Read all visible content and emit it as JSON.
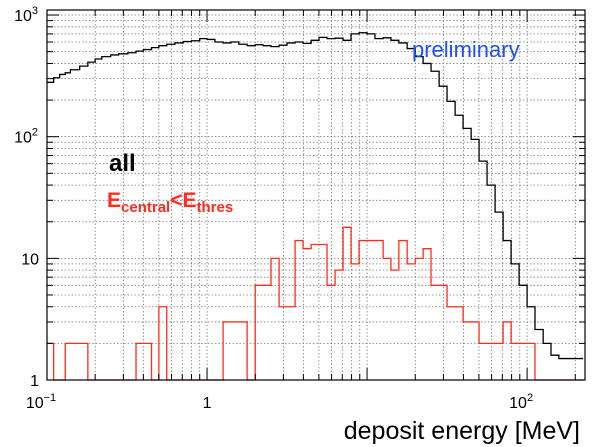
{
  "chart_data": {
    "type": "histogram",
    "title": "",
    "xlabel": "deposit energy [MeV]",
    "ylabel": "",
    "x_scale": "log",
    "y_scale": "log",
    "xlim": [
      0.1,
      230
    ],
    "ylim": [
      1,
      1100
    ],
    "grid": true,
    "x_ticks": [
      {
        "value": 0.1,
        "base": "10",
        "exp": "−1"
      },
      {
        "value": 1,
        "base": "1",
        "exp": ""
      },
      {
        "value": 100,
        "base": "10",
        "exp": "2"
      }
    ],
    "y_ticks": [
      {
        "value": 1,
        "base": "1",
        "exp": ""
      },
      {
        "value": 10,
        "base": "10",
        "exp": ""
      },
      {
        "value": 100,
        "base": "10",
        "exp": "2"
      },
      {
        "value": 1000,
        "base": "10",
        "exp": "3"
      }
    ],
    "annotations": {
      "preliminary": {
        "text": "preliminary",
        "color": "#1f4fff"
      },
      "all": {
        "text": "all",
        "color": "#000000"
      },
      "selection": {
        "main": "E",
        "sub1": "central",
        "mid": "<E",
        "sub2": "thres",
        "color": "#ff2b1c"
      }
    },
    "series": [
      {
        "name": "all",
        "color": "#000000",
        "bin_edges": [
          0.1,
          0.11,
          0.12,
          0.13,
          0.14,
          0.16,
          0.18,
          0.2,
          0.22,
          0.25,
          0.28,
          0.32,
          0.36,
          0.4,
          0.45,
          0.5,
          0.56,
          0.63,
          0.71,
          0.8,
          0.9,
          1.0,
          1.12,
          1.26,
          1.41,
          1.58,
          1.78,
          2.0,
          2.24,
          2.51,
          2.82,
          3.16,
          3.55,
          3.98,
          4.47,
          5.01,
          5.62,
          6.31,
          7.08,
          7.94,
          8.91,
          10.0,
          11.2,
          12.6,
          14.1,
          15.8,
          17.8,
          20.0,
          22.4,
          25.1,
          28.2,
          31.6,
          35.5,
          39.8,
          44.7,
          50.1,
          56.2,
          63.1,
          70.8,
          79.4,
          89.1,
          100,
          112,
          126,
          141,
          158,
          178,
          200,
          224
        ],
        "values": [
          280,
          305,
          325,
          335,
          355,
          380,
          410,
          435,
          455,
          470,
          480,
          490,
          505,
          520,
          540,
          560,
          575,
          590,
          605,
          615,
          640,
          630,
          600,
          590,
          600,
          575,
          560,
          570,
          560,
          550,
          565,
          590,
          600,
          585,
          620,
          655,
          640,
          645,
          620,
          700,
          715,
          700,
          640,
          650,
          620,
          590,
          530,
          455,
          400,
          345,
          260,
          195,
          150,
          117,
          95,
          63,
          40,
          24,
          14,
          9,
          6,
          4,
          2.6,
          2.0,
          1.6,
          1.5,
          1.5,
          1.5
        ]
      },
      {
        "name": "E_central<E_thres",
        "color": "#ff2b1c",
        "bin_edges": [
          0.1,
          0.11,
          0.12,
          0.13,
          0.14,
          0.16,
          0.18,
          0.2,
          0.22,
          0.25,
          0.28,
          0.32,
          0.36,
          0.4,
          0.45,
          0.5,
          0.56,
          0.63,
          0.71,
          0.8,
          0.9,
          1.0,
          1.12,
          1.26,
          1.41,
          1.58,
          1.78,
          2.0,
          2.24,
          2.51,
          2.82,
          3.16,
          3.55,
          3.98,
          4.47,
          5.01,
          5.62,
          6.31,
          7.08,
          7.94,
          8.91,
          10.0,
          11.2,
          12.6,
          14.1,
          15.8,
          17.8,
          20.0,
          22.4,
          25.1,
          28.2,
          31.6,
          35.5,
          39.8,
          44.7,
          50.1,
          56.2,
          63.1,
          70.8,
          79.4,
          89.1,
          100,
          112,
          126,
          141,
          158,
          178,
          200,
          224
        ],
        "values": [
          2,
          1,
          1,
          2,
          2,
          2,
          1,
          1,
          1,
          1,
          1,
          1,
          2,
          2,
          1,
          4,
          1,
          1,
          1,
          1,
          1,
          1,
          1,
          3,
          3,
          3,
          1,
          6,
          6,
          10,
          4,
          4,
          14,
          12,
          13,
          13,
          6,
          8,
          18,
          9,
          14,
          14,
          14,
          10,
          8,
          14,
          9,
          10,
          12,
          6,
          6,
          4,
          4,
          3,
          3,
          2,
          2,
          2,
          3,
          2,
          2,
          2,
          1,
          1,
          1,
          1,
          1,
          1
        ]
      }
    ]
  }
}
